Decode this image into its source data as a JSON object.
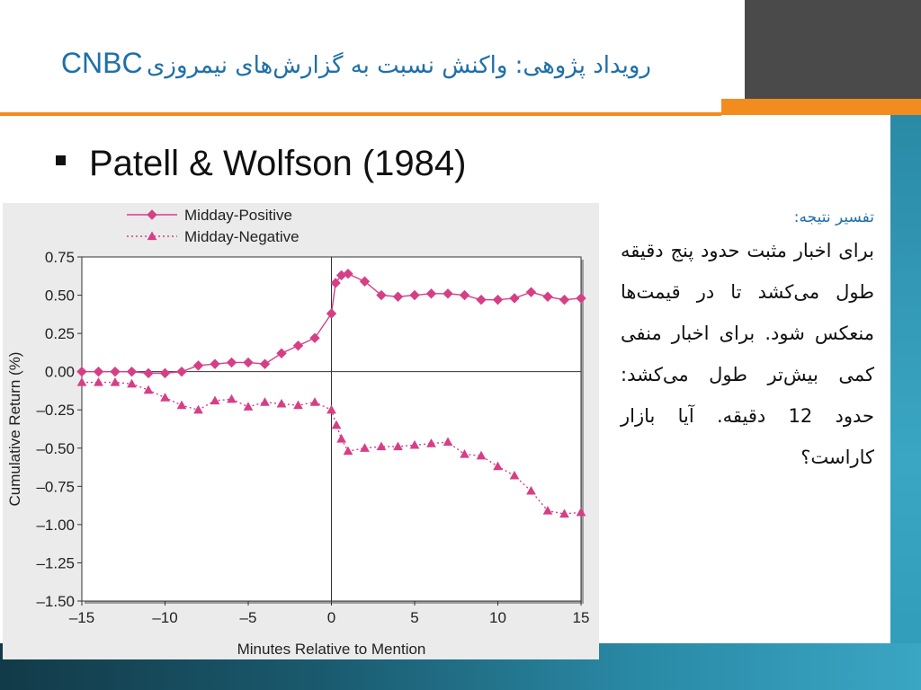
{
  "slide": {
    "title_fa": "رویداد پژوهی: واکنش نسبت به گزارش‌های نیمروزی",
    "title_en": "CNBC",
    "bullet": "Patell & Wolfson (1984)",
    "interpretation_title": "تفسیر نتیجه:",
    "interpretation_body": "برای اخبار مثبت حدود پنج دقیقه طول می‌کشد تا در قیمت‌ها منعکس شود. برای اخبار منفی کمی بیش‌تر طول می‌کشد: حدود 12 دقیقه. آیا بازار کاراست؟",
    "colors": {
      "accent_blue": "#1f6fa8",
      "orange": "#f28c1e",
      "teal": "#2a8aa6",
      "series": "#d63f86"
    }
  },
  "chart_data": {
    "type": "line",
    "xlabel": "Minutes Relative to Mention",
    "ylabel": "Cumulative Return (%)",
    "xlim": [
      -15,
      15
    ],
    "ylim": [
      -1.5,
      0.75
    ],
    "xticks": [
      -15,
      -10,
      -5,
      0,
      5,
      10,
      15
    ],
    "xtick_labels": [
      "–15",
      "–10",
      "–5",
      "0",
      "5",
      "10",
      "15"
    ],
    "yticks": [
      0.75,
      0.5,
      0.25,
      0,
      -0.25,
      -0.5,
      -0.75,
      -1,
      -1.25,
      -1.5
    ],
    "ytick_labels": [
      "0.75",
      "0.50",
      "0.25",
      "0.00",
      "–0.25",
      "–0.50",
      "–0.75",
      "–1.00",
      "–1.25",
      "–1.50"
    ],
    "legend_position": "top-left",
    "grid": false,
    "series": [
      {
        "name": "Midday-Positive",
        "marker": "diamond",
        "line": "solid",
        "color": "#d63f86",
        "x": [
          -15,
          -14,
          -13,
          -12,
          -11,
          -10,
          -9,
          -8,
          -7,
          -6,
          -5,
          -4,
          -3,
          -2,
          -1,
          0,
          0.25,
          0.6,
          1,
          2,
          3,
          4,
          5,
          6,
          7,
          8,
          9,
          10,
          11,
          12,
          13,
          14,
          15
        ],
        "y": [
          0,
          0,
          0,
          0,
          -0.01,
          -0.01,
          0,
          0.04,
          0.05,
          0.06,
          0.06,
          0.05,
          0.12,
          0.17,
          0.22,
          0.38,
          0.58,
          0.63,
          0.64,
          0.59,
          0.5,
          0.49,
          0.5,
          0.51,
          0.51,
          0.5,
          0.47,
          0.47,
          0.48,
          0.52,
          0.49,
          0.47,
          0.48
        ]
      },
      {
        "name": "Midday-Negative",
        "marker": "triangle",
        "line": "dotted",
        "color": "#d63f86",
        "x": [
          -15,
          -14,
          -13,
          -12,
          -11,
          -10,
          -9,
          -8,
          -7,
          -6,
          -5,
          -4,
          -3,
          -2,
          -1,
          0,
          0.3,
          0.6,
          1,
          2,
          3,
          4,
          5,
          6,
          7,
          8,
          9,
          10,
          11,
          12,
          13,
          14,
          15
        ],
        "y": [
          -0.07,
          -0.07,
          -0.07,
          -0.08,
          -0.12,
          -0.17,
          -0.22,
          -0.25,
          -0.19,
          -0.18,
          -0.23,
          -0.2,
          -0.21,
          -0.22,
          -0.2,
          -0.25,
          -0.35,
          -0.44,
          -0.52,
          -0.5,
          -0.49,
          -0.49,
          -0.48,
          -0.47,
          -0.46,
          -0.54,
          -0.55,
          -0.62,
          -0.68,
          -0.78,
          -0.91,
          -0.93,
          -0.92
        ]
      }
    ]
  }
}
